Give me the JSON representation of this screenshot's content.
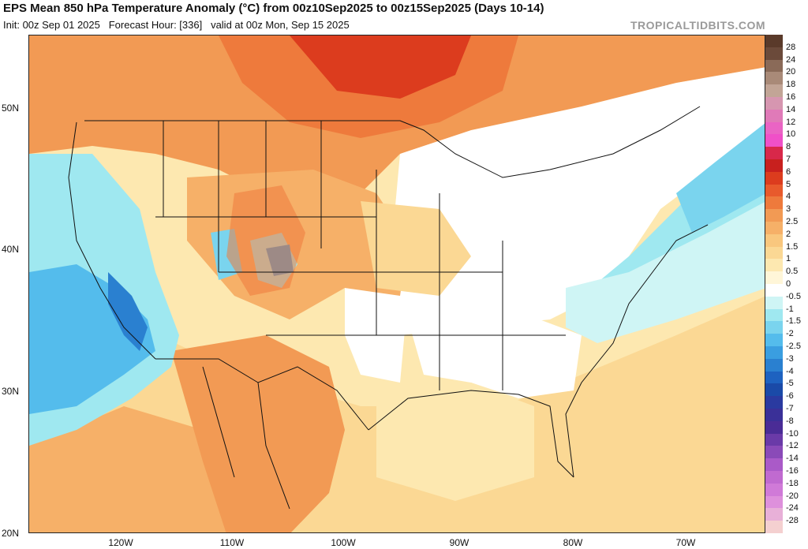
{
  "header": {
    "title": "EPS Mean 850 hPa Temperature Anomaly (°C) from 00z10Sep2025 to 00z15Sep2025 (Days 10-14)",
    "init": "Init: 00z Sep 01 2025",
    "forecast_hour": "Forecast Hour: [336]",
    "valid": "valid at 00z Mon, Sep 15 2025",
    "brand": "TROPICALTIDBITS.COM"
  },
  "axes": {
    "lat_labels": [
      "50N",
      "40N",
      "30N",
      "20N"
    ],
    "lon_labels": [
      "120W",
      "110W",
      "100W",
      "90W",
      "80W",
      "70W"
    ]
  },
  "colorbar": {
    "labels": [
      "28",
      "24",
      "20",
      "18",
      "16",
      "14",
      "12",
      "10",
      "8",
      "7",
      "6",
      "5",
      "4",
      "3",
      "2.5",
      "2",
      "1.5",
      "1",
      "0.5",
      "0",
      "-0.5",
      "-1",
      "-1.5",
      "-2",
      "-2.5",
      "-3",
      "-4",
      "-5",
      "-6",
      "-7",
      "-8",
      "-10",
      "-12",
      "-14",
      "-16",
      "-18",
      "-20",
      "-24",
      "-28"
    ],
    "colors": [
      "#6b4a3a",
      "#8a6a58",
      "#a98a78",
      "#c2a596",
      "#d696b0",
      "#e07ab8",
      "#ea64c4",
      "#f050c8",
      "#d8284a",
      "#c8201e",
      "#dc3c1e",
      "#e85a2c",
      "#ee7a3c",
      "#f29a54",
      "#f6b068",
      "#f9c77e",
      "#fbd894",
      "#fde8b0",
      "#fff6d8",
      "#ffffff",
      "#cff5f5",
      "#9fe8f0",
      "#7ad4ee",
      "#54bcec",
      "#3a9ee0",
      "#2a80d0",
      "#1e62c0",
      "#1a4aa8",
      "#2a3aa0",
      "#3a3098",
      "#4a2c96",
      "#6a3aa8",
      "#8a4ab8",
      "#aa5ac8",
      "#c06ad0",
      "#d07ad8",
      "#de90dc",
      "#e8b0d8",
      "#f4d0d0"
    ]
  },
  "map_regions": {
    "warm_north": "#ee7a3c",
    "warm_core": "#d8482a",
    "warm_mid": "#f6b068",
    "warm_light": "#fbd894",
    "warm_pale": "#fde8b0",
    "neutral": "#ffffff",
    "cool_light": "#9fe8f0",
    "cool_mid": "#54bcec",
    "cool_strong": "#2a80d0"
  }
}
